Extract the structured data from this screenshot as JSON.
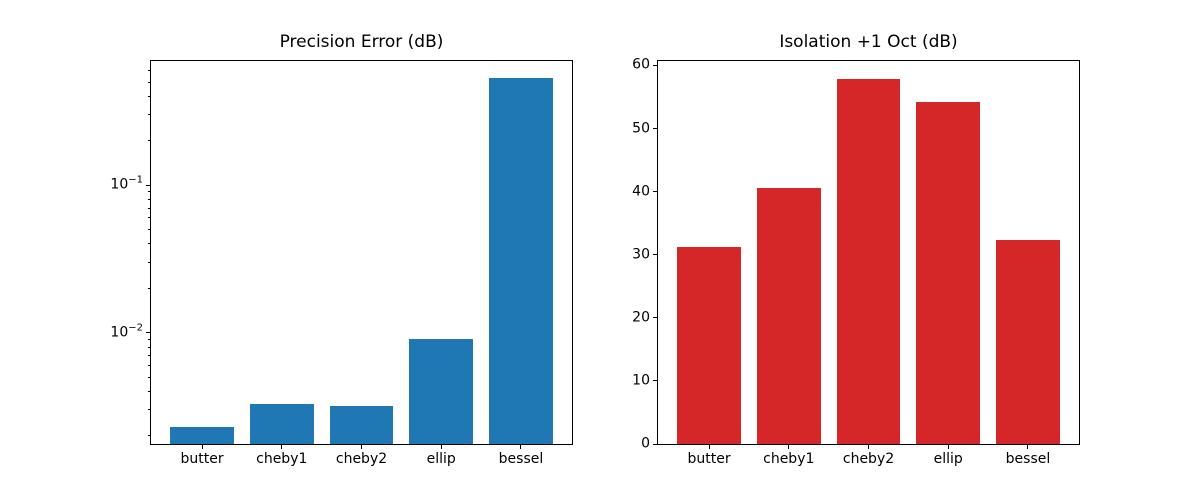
{
  "figure": {
    "background": "#ffffff",
    "text_color": "#000000"
  },
  "chart_data": [
    {
      "type": "bar",
      "title": "Precision Error (dB)",
      "categories": [
        "butter",
        "cheby1",
        "cheby2",
        "ellip",
        "bessel"
      ],
      "values": [
        0.0023,
        0.0033,
        0.0032,
        0.0091,
        0.53
      ],
      "bar_color": "#1f77b4",
      "yscale": "log",
      "ylim": [
        0.00176,
        0.695
      ],
      "yticks": [
        {
          "value": 0.1,
          "label": "10",
          "sup": "−1"
        },
        {
          "value": 0.01,
          "label": "10",
          "sup": "−2"
        }
      ],
      "xlabel": "",
      "ylabel": "",
      "grid": false,
      "legend": "none"
    },
    {
      "type": "bar",
      "title": "Isolation +1 Oct (dB)",
      "categories": [
        "butter",
        "cheby1",
        "cheby2",
        "ellip",
        "bessel"
      ],
      "values": [
        31.2,
        40.6,
        57.8,
        54.2,
        32.3
      ],
      "bar_color": "#d62728",
      "yscale": "linear",
      "ylim": [
        0,
        60.7
      ],
      "yticks": [
        {
          "value": 0,
          "label": "0"
        },
        {
          "value": 10,
          "label": "10"
        },
        {
          "value": 20,
          "label": "20"
        },
        {
          "value": 30,
          "label": "30"
        },
        {
          "value": 40,
          "label": "40"
        },
        {
          "value": 50,
          "label": "50"
        },
        {
          "value": 60,
          "label": "60"
        }
      ],
      "xlabel": "",
      "ylabel": "",
      "grid": false,
      "legend": "none"
    }
  ]
}
